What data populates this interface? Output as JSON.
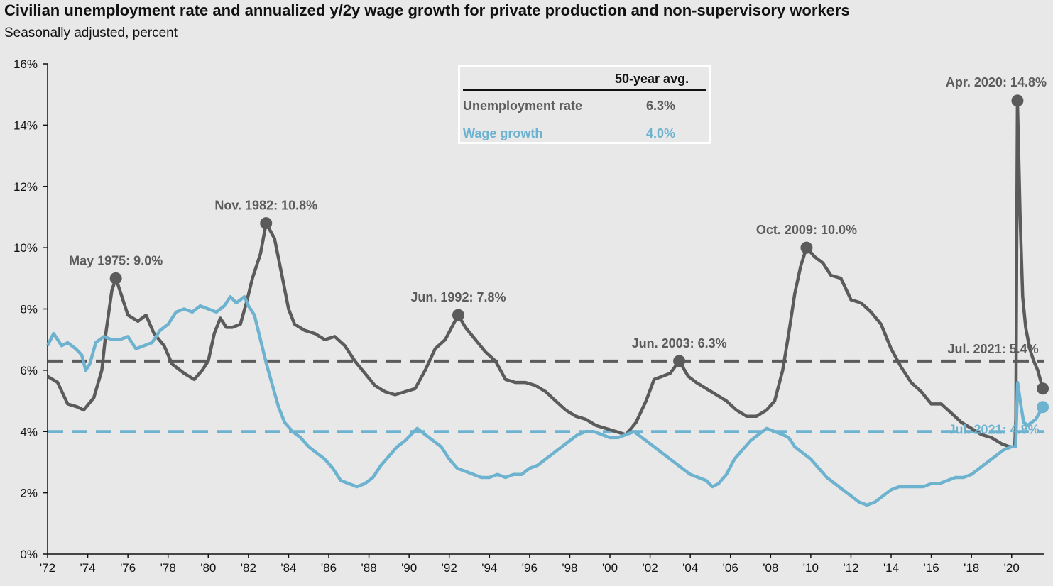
{
  "title": "Civilian unemployment rate and annualized y/2y wage growth for private production and non-supervisory workers",
  "subtitle": "Seasonally adjusted, percent",
  "legend": {
    "header": "50-year avg.",
    "rows": [
      {
        "label": "Unemployment rate",
        "value": "6.3%",
        "color": "#5b5b5b"
      },
      {
        "label": "Wage growth",
        "value": "4.0%",
        "color": "#6db3d0"
      }
    ]
  },
  "chart_data": {
    "type": "line",
    "xlim": [
      1972.0,
      2021.6
    ],
    "ylim": [
      0,
      16
    ],
    "y_ticks": [
      {
        "value": 0,
        "label": "0%"
      },
      {
        "value": 2,
        "label": "2%"
      },
      {
        "value": 4,
        "label": "4%"
      },
      {
        "value": 6,
        "label": "6%"
      },
      {
        "value": 8,
        "label": "8%"
      },
      {
        "value": 10,
        "label": "10%"
      },
      {
        "value": 12,
        "label": "12%"
      },
      {
        "value": 14,
        "label": "14%"
      },
      {
        "value": 16,
        "label": "16%"
      }
    ],
    "x_ticks": [
      {
        "value": 1972,
        "label": "'72"
      },
      {
        "value": 1974,
        "label": "'74"
      },
      {
        "value": 1976,
        "label": "'76"
      },
      {
        "value": 1978,
        "label": "'78"
      },
      {
        "value": 1980,
        "label": "'80"
      },
      {
        "value": 1982,
        "label": "'82"
      },
      {
        "value": 1984,
        "label": "'84"
      },
      {
        "value": 1986,
        "label": "'86"
      },
      {
        "value": 1988,
        "label": "'88"
      },
      {
        "value": 1990,
        "label": "'90"
      },
      {
        "value": 1992,
        "label": "'92"
      },
      {
        "value": 1994,
        "label": "'94"
      },
      {
        "value": 1996,
        "label": "'96"
      },
      {
        "value": 1998,
        "label": "'98"
      },
      {
        "value": 2000,
        "label": "'00"
      },
      {
        "value": 2002,
        "label": "'02"
      },
      {
        "value": 2004,
        "label": "'04"
      },
      {
        "value": 2006,
        "label": "'06"
      },
      {
        "value": 2008,
        "label": "'08"
      },
      {
        "value": 2010,
        "label": "'10"
      },
      {
        "value": 2012,
        "label": "'12"
      },
      {
        "value": 2014,
        "label": "'14"
      },
      {
        "value": 2016,
        "label": "'16"
      },
      {
        "value": 2018,
        "label": "'18"
      },
      {
        "value": 2020,
        "label": "'20"
      }
    ],
    "series": [
      {
        "name": "Unemployment rate",
        "color": "#5b5b5b",
        "average": 6.3,
        "points": [
          [
            1972.0,
            5.8
          ],
          [
            1972.5,
            5.6
          ],
          [
            1973.0,
            4.9
          ],
          [
            1973.5,
            4.8
          ],
          [
            1973.8,
            4.7
          ],
          [
            1974.3,
            5.1
          ],
          [
            1974.7,
            6.0
          ],
          [
            1974.9,
            7.2
          ],
          [
            1975.2,
            8.6
          ],
          [
            1975.4,
            9.0
          ],
          [
            1975.7,
            8.4
          ],
          [
            1976.0,
            7.8
          ],
          [
            1976.5,
            7.6
          ],
          [
            1976.9,
            7.8
          ],
          [
            1977.3,
            7.2
          ],
          [
            1977.8,
            6.8
          ],
          [
            1978.2,
            6.2
          ],
          [
            1978.8,
            5.9
          ],
          [
            1979.3,
            5.7
          ],
          [
            1979.7,
            6.0
          ],
          [
            1980.0,
            6.3
          ],
          [
            1980.3,
            7.2
          ],
          [
            1980.6,
            7.7
          ],
          [
            1980.9,
            7.4
          ],
          [
            1981.2,
            7.4
          ],
          [
            1981.6,
            7.5
          ],
          [
            1981.9,
            8.2
          ],
          [
            1982.2,
            9.0
          ],
          [
            1982.6,
            9.8
          ],
          [
            1982.88,
            10.8
          ],
          [
            1983.3,
            10.3
          ],
          [
            1983.7,
            9.0
          ],
          [
            1984.0,
            8.0
          ],
          [
            1984.3,
            7.5
          ],
          [
            1984.8,
            7.3
          ],
          [
            1985.3,
            7.2
          ],
          [
            1985.8,
            7.0
          ],
          [
            1986.3,
            7.1
          ],
          [
            1986.8,
            6.8
          ],
          [
            1987.3,
            6.3
          ],
          [
            1987.8,
            5.9
          ],
          [
            1988.3,
            5.5
          ],
          [
            1988.8,
            5.3
          ],
          [
            1989.3,
            5.2
          ],
          [
            1989.8,
            5.3
          ],
          [
            1990.3,
            5.4
          ],
          [
            1990.8,
            6.0
          ],
          [
            1991.3,
            6.7
          ],
          [
            1991.8,
            7.0
          ],
          [
            1992.2,
            7.5
          ],
          [
            1992.45,
            7.8
          ],
          [
            1992.8,
            7.4
          ],
          [
            1993.3,
            7.0
          ],
          [
            1993.8,
            6.6
          ],
          [
            1994.3,
            6.3
          ],
          [
            1994.8,
            5.7
          ],
          [
            1995.3,
            5.6
          ],
          [
            1995.8,
            5.6
          ],
          [
            1996.3,
            5.5
          ],
          [
            1996.8,
            5.3
          ],
          [
            1997.3,
            5.0
          ],
          [
            1997.8,
            4.7
          ],
          [
            1998.3,
            4.5
          ],
          [
            1998.8,
            4.4
          ],
          [
            1999.3,
            4.2
          ],
          [
            1999.8,
            4.1
          ],
          [
            2000.3,
            4.0
          ],
          [
            2000.8,
            3.9
          ],
          [
            2001.3,
            4.3
          ],
          [
            2001.8,
            5.0
          ],
          [
            2002.2,
            5.7
          ],
          [
            2002.6,
            5.8
          ],
          [
            2003.0,
            5.9
          ],
          [
            2003.45,
            6.3
          ],
          [
            2003.9,
            5.8
          ],
          [
            2004.3,
            5.6
          ],
          [
            2004.8,
            5.4
          ],
          [
            2005.3,
            5.2
          ],
          [
            2005.8,
            5.0
          ],
          [
            2006.3,
            4.7
          ],
          [
            2006.8,
            4.5
          ],
          [
            2007.3,
            4.5
          ],
          [
            2007.8,
            4.7
          ],
          [
            2008.2,
            5.0
          ],
          [
            2008.6,
            6.0
          ],
          [
            2008.9,
            7.2
          ],
          [
            2009.2,
            8.5
          ],
          [
            2009.5,
            9.4
          ],
          [
            2009.79,
            10.0
          ],
          [
            2010.2,
            9.7
          ],
          [
            2010.6,
            9.5
          ],
          [
            2011.0,
            9.1
          ],
          [
            2011.5,
            9.0
          ],
          [
            2012.0,
            8.3
          ],
          [
            2012.5,
            8.2
          ],
          [
            2013.0,
            7.9
          ],
          [
            2013.5,
            7.5
          ],
          [
            2014.0,
            6.7
          ],
          [
            2014.5,
            6.1
          ],
          [
            2015.0,
            5.6
          ],
          [
            2015.5,
            5.3
          ],
          [
            2016.0,
            4.9
          ],
          [
            2016.5,
            4.9
          ],
          [
            2017.0,
            4.6
          ],
          [
            2017.5,
            4.3
          ],
          [
            2018.0,
            4.1
          ],
          [
            2018.5,
            3.9
          ],
          [
            2019.0,
            3.8
          ],
          [
            2019.5,
            3.6
          ],
          [
            2019.9,
            3.5
          ],
          [
            2020.15,
            3.5
          ],
          [
            2020.21,
            4.4
          ],
          [
            2020.29,
            14.8
          ],
          [
            2020.42,
            11.1
          ],
          [
            2020.55,
            8.4
          ],
          [
            2020.7,
            7.4
          ],
          [
            2020.9,
            6.7
          ],
          [
            2021.1,
            6.3
          ],
          [
            2021.3,
            6.0
          ],
          [
            2021.55,
            5.4
          ]
        ]
      },
      {
        "name": "Wage growth",
        "color": "#6db3d0",
        "average": 4.0,
        "points": [
          [
            1972.0,
            6.8
          ],
          [
            1972.3,
            7.2
          ],
          [
            1972.7,
            6.8
          ],
          [
            1973.0,
            6.9
          ],
          [
            1973.4,
            6.7
          ],
          [
            1973.7,
            6.5
          ],
          [
            1973.9,
            6.0
          ],
          [
            1974.1,
            6.2
          ],
          [
            1974.4,
            6.9
          ],
          [
            1974.8,
            7.1
          ],
          [
            1975.2,
            7.0
          ],
          [
            1975.6,
            7.0
          ],
          [
            1976.0,
            7.1
          ],
          [
            1976.4,
            6.7
          ],
          [
            1976.8,
            6.8
          ],
          [
            1977.2,
            6.9
          ],
          [
            1977.6,
            7.3
          ],
          [
            1978.0,
            7.5
          ],
          [
            1978.4,
            7.9
          ],
          [
            1978.8,
            8.0
          ],
          [
            1979.2,
            7.9
          ],
          [
            1979.6,
            8.1
          ],
          [
            1980.0,
            8.0
          ],
          [
            1980.4,
            7.9
          ],
          [
            1980.8,
            8.1
          ],
          [
            1981.1,
            8.4
          ],
          [
            1981.4,
            8.2
          ],
          [
            1981.8,
            8.4
          ],
          [
            1982.0,
            8.1
          ],
          [
            1982.3,
            7.8
          ],
          [
            1982.6,
            7.0
          ],
          [
            1982.9,
            6.2
          ],
          [
            1983.2,
            5.5
          ],
          [
            1983.5,
            4.8
          ],
          [
            1983.8,
            4.3
          ],
          [
            1984.2,
            4.0
          ],
          [
            1984.6,
            3.8
          ],
          [
            1985.0,
            3.5
          ],
          [
            1985.4,
            3.3
          ],
          [
            1985.8,
            3.1
          ],
          [
            1986.2,
            2.8
          ],
          [
            1986.6,
            2.4
          ],
          [
            1987.0,
            2.3
          ],
          [
            1987.4,
            2.2
          ],
          [
            1987.8,
            2.3
          ],
          [
            1988.2,
            2.5
          ],
          [
            1988.6,
            2.9
          ],
          [
            1989.0,
            3.2
          ],
          [
            1989.4,
            3.5
          ],
          [
            1989.8,
            3.7
          ],
          [
            1990.1,
            3.9
          ],
          [
            1990.4,
            4.1
          ],
          [
            1990.8,
            3.9
          ],
          [
            1991.2,
            3.7
          ],
          [
            1991.6,
            3.5
          ],
          [
            1992.0,
            3.1
          ],
          [
            1992.4,
            2.8
          ],
          [
            1992.8,
            2.7
          ],
          [
            1993.2,
            2.6
          ],
          [
            1993.6,
            2.5
          ],
          [
            1994.0,
            2.5
          ],
          [
            1994.4,
            2.6
          ],
          [
            1994.8,
            2.5
          ],
          [
            1995.2,
            2.6
          ],
          [
            1995.6,
            2.6
          ],
          [
            1996.0,
            2.8
          ],
          [
            1996.4,
            2.9
          ],
          [
            1996.8,
            3.1
          ],
          [
            1997.2,
            3.3
          ],
          [
            1997.6,
            3.5
          ],
          [
            1998.0,
            3.7
          ],
          [
            1998.4,
            3.9
          ],
          [
            1998.8,
            4.0
          ],
          [
            1999.2,
            4.0
          ],
          [
            1999.6,
            3.9
          ],
          [
            2000.0,
            3.8
          ],
          [
            2000.4,
            3.8
          ],
          [
            2000.8,
            3.9
          ],
          [
            2001.2,
            4.0
          ],
          [
            2001.6,
            3.8
          ],
          [
            2002.0,
            3.6
          ],
          [
            2002.4,
            3.4
          ],
          [
            2002.8,
            3.2
          ],
          [
            2003.2,
            3.0
          ],
          [
            2003.6,
            2.8
          ],
          [
            2004.0,
            2.6
          ],
          [
            2004.4,
            2.5
          ],
          [
            2004.8,
            2.4
          ],
          [
            2005.1,
            2.2
          ],
          [
            2005.4,
            2.3
          ],
          [
            2005.8,
            2.6
          ],
          [
            2006.2,
            3.1
          ],
          [
            2006.6,
            3.4
          ],
          [
            2007.0,
            3.7
          ],
          [
            2007.4,
            3.9
          ],
          [
            2007.8,
            4.1
          ],
          [
            2008.2,
            4.0
          ],
          [
            2008.6,
            3.9
          ],
          [
            2008.9,
            3.8
          ],
          [
            2009.2,
            3.5
          ],
          [
            2009.6,
            3.3
          ],
          [
            2010.0,
            3.1
          ],
          [
            2010.4,
            2.8
          ],
          [
            2010.8,
            2.5
          ],
          [
            2011.2,
            2.3
          ],
          [
            2011.6,
            2.1
          ],
          [
            2012.0,
            1.9
          ],
          [
            2012.4,
            1.7
          ],
          [
            2012.8,
            1.6
          ],
          [
            2013.2,
            1.7
          ],
          [
            2013.6,
            1.9
          ],
          [
            2014.0,
            2.1
          ],
          [
            2014.4,
            2.2
          ],
          [
            2014.8,
            2.2
          ],
          [
            2015.2,
            2.2
          ],
          [
            2015.6,
            2.2
          ],
          [
            2016.0,
            2.3
          ],
          [
            2016.4,
            2.3
          ],
          [
            2016.8,
            2.4
          ],
          [
            2017.2,
            2.5
          ],
          [
            2017.6,
            2.5
          ],
          [
            2018.0,
            2.6
          ],
          [
            2018.4,
            2.8
          ],
          [
            2018.8,
            3.0
          ],
          [
            2019.2,
            3.2
          ],
          [
            2019.6,
            3.4
          ],
          [
            2020.0,
            3.5
          ],
          [
            2020.2,
            3.5
          ],
          [
            2020.3,
            5.6
          ],
          [
            2020.45,
            4.9
          ],
          [
            2020.6,
            4.3
          ],
          [
            2020.8,
            4.2
          ],
          [
            2021.0,
            4.3
          ],
          [
            2021.2,
            4.4
          ],
          [
            2021.55,
            4.8
          ]
        ]
      }
    ],
    "annotations": [
      {
        "label": "May 1975: 9.0%",
        "x": 1975.4,
        "y": 9.0,
        "series": 0
      },
      {
        "label": "Nov. 1982: 10.8%",
        "x": 1982.88,
        "y": 10.8,
        "series": 0
      },
      {
        "label": "Jun. 1992: 7.8%",
        "x": 1992.45,
        "y": 7.8,
        "series": 0
      },
      {
        "label": "Jun. 2003: 6.3%",
        "x": 2003.45,
        "y": 6.3,
        "series": 0
      },
      {
        "label": "Oct. 2009: 10.0%",
        "x": 2009.79,
        "y": 10.0,
        "series": 0
      },
      {
        "label": "Apr. 2020: 14.8%",
        "x": 2020.29,
        "y": 14.8,
        "series": 0
      },
      {
        "label": "Jul. 2021: 5.4%",
        "x": 2021.55,
        "y": 5.4,
        "series": 0
      },
      {
        "label": "Jul. 2021: 4.8%",
        "x": 2021.55,
        "y": 4.8,
        "series": 1
      }
    ]
  }
}
